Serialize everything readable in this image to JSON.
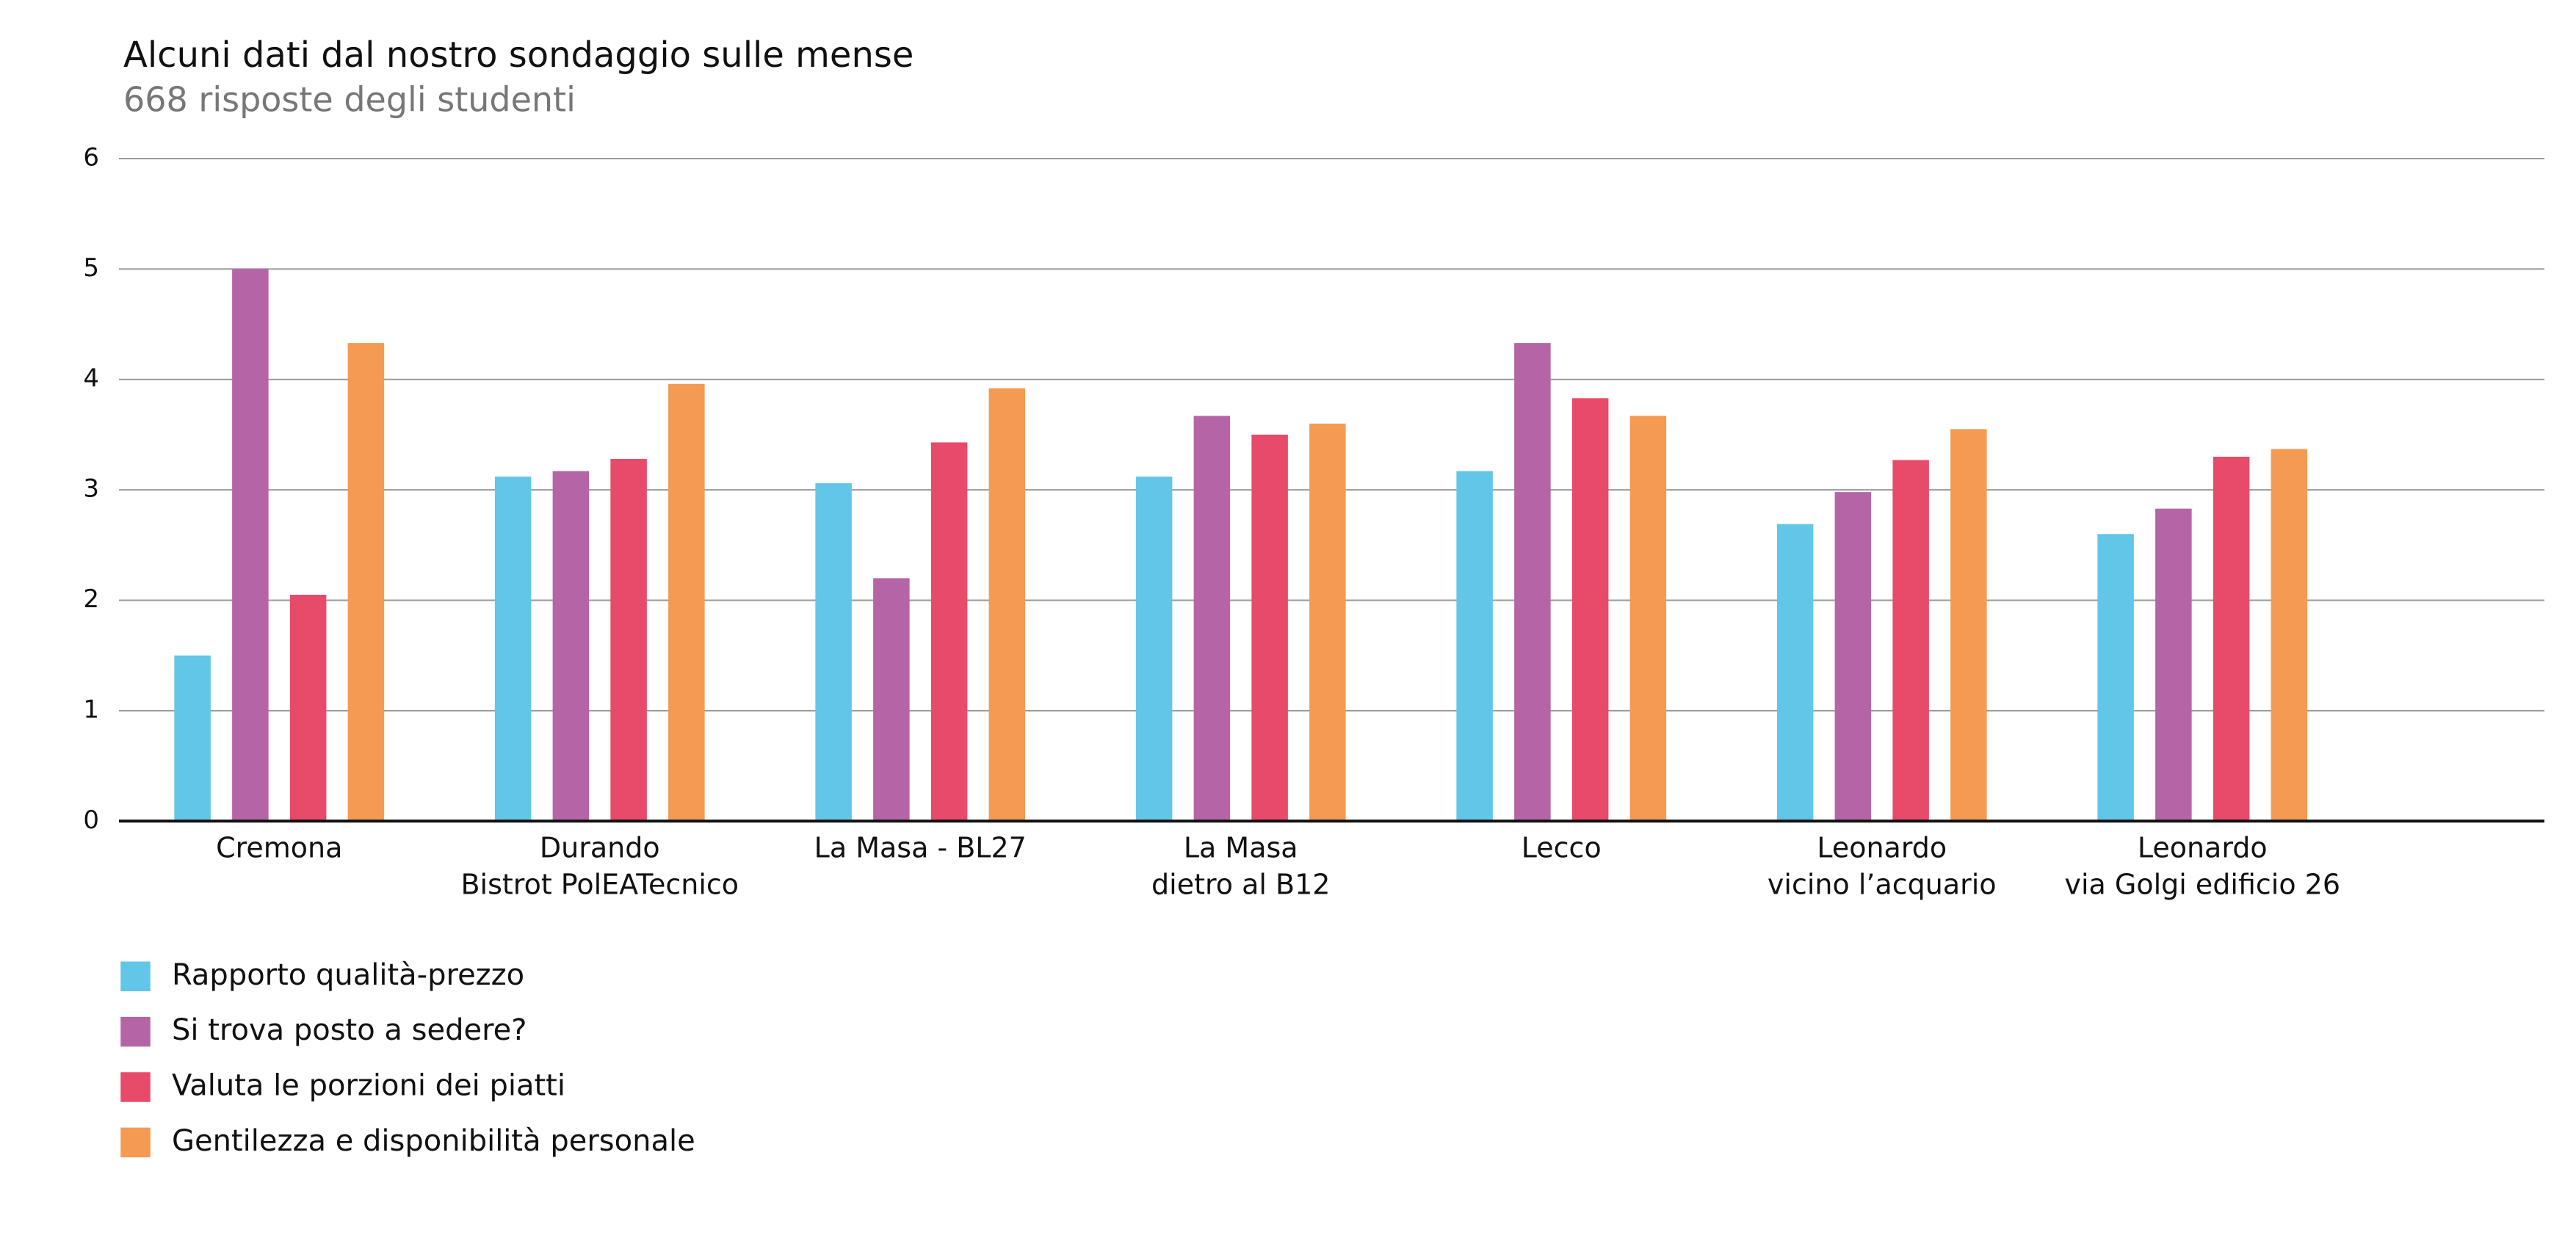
{
  "chart_data": {
    "type": "bar",
    "title": "Alcuni dati dal nostro sondaggio sulle mense",
    "subtitle": "668 risposte degli studenti",
    "categories": [
      [
        "Cremona"
      ],
      [
        "Durando",
        "Bistrot PolEATecnico"
      ],
      [
        "La Masa - BL27"
      ],
      [
        "La Masa",
        "dietro al B12"
      ],
      [
        "Lecco"
      ],
      [
        "Leonardo",
        "vicino l’acquario"
      ],
      [
        "Leonardo",
        "via Golgi edificio 26"
      ]
    ],
    "series": [
      {
        "name": "Rapporto qualità-prezzo",
        "color": "#62c6e9",
        "values": [
          1.5,
          3.12,
          3.06,
          3.12,
          3.17,
          2.69,
          2.6
        ]
      },
      {
        "name": "Si trova posto a sedere?",
        "color": "#b565a5",
        "values": [
          5.0,
          3.17,
          2.2,
          3.67,
          4.33,
          2.98,
          2.83
        ]
      },
      {
        "name": "Valuta le porzioni dei piatti",
        "color": "#e84a6a",
        "values": [
          2.05,
          3.28,
          3.43,
          3.5,
          3.83,
          3.27,
          3.3
        ]
      },
      {
        "name": "Gentilezza e disponibilità personale",
        "color": "#f59a52",
        "values": [
          4.33,
          3.96,
          3.92,
          3.6,
          3.67,
          3.55,
          3.37
        ]
      }
    ],
    "ylim": [
      0,
      6
    ],
    "yticks": [
      0,
      1,
      2,
      3,
      4,
      5,
      6
    ],
    "grid": true,
    "legend": "bottom-left"
  }
}
